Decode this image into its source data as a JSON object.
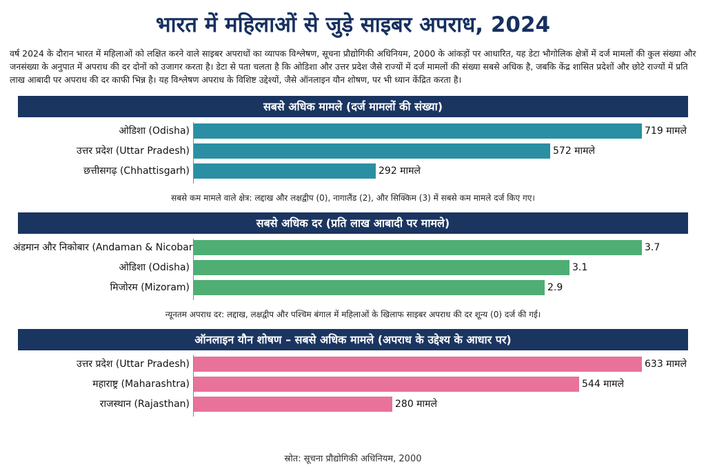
{
  "title": "भारत में महिलाओं से जुड़े साइबर अपराध, 2024",
  "intro": "वर्ष 2024 के दौरान भारत में महिलाओं को लक्षित करने वाले साइबर अपराधों का व्यापक विश्लेषण, सूचना प्रौद्योगिकी अधिनियम, 2000 के आंकड़ों पर आधारित, यह डेटा भौगोलिक क्षेत्रों में दर्ज मामलों की कुल संख्या और जनसंख्या के अनुपात में अपराध की दर दोनों को उजागर करता है। डेटा से पता चलता है कि ओडिशा और उत्तर प्रदेश जैसे राज्यों में दर्ज मामलों की संख्या सबसे अधिक है, जबकि केंद्र शासित प्रदेशों और छोटे राज्यों में प्रति लाख आबादी पर अपराध की दर काफी भिन्न है। यह विश्लेषण अपराध के विशिष्ट उद्देश्यों, जैसे ऑनलाइन यौन शोषण, पर भी ध्यान केंद्रित करता है।",
  "source": "स्रोत: सूचना प्रौद्योगिकी अधिनियम, 2000",
  "chart_data": [
    {
      "type": "bar",
      "orientation": "horizontal",
      "title": "सबसे अधिक मामले (दर्ज मामलों की संख्या)",
      "color": "#2a8fa3",
      "categories": [
        "ओडिशा (Odisha)",
        "उत्तर प्रदेश (Uttar Pradesh)",
        "छत्तीसगढ़ (Chhattisgarh)"
      ],
      "values": [
        719,
        572,
        292
      ],
      "value_labels": [
        "719 मामले",
        "572 मामले",
        "292 मामले"
      ],
      "note": "सबसे कम मामले वाले क्षेत्र: लद्दाख और लक्षद्वीप (0), नागालैंड (2), और सिक्किम (3) में सबसे कम मामले दर्ज किए गए।"
    },
    {
      "type": "bar",
      "orientation": "horizontal",
      "title": "सबसे अधिक दर (प्रति लाख आबादी पर मामले)",
      "color": "#4fae74",
      "categories": [
        "अंडमान और निकोबार (Andaman & Nicobar)",
        "ओडिशा (Odisha)",
        "मिजोरम (Mizoram)"
      ],
      "values": [
        3.7,
        3.1,
        2.9
      ],
      "value_labels": [
        "3.7",
        "3.1",
        "2.9"
      ],
      "note": "न्यूनतम अपराध दर: लद्दाख, लक्षद्वीप और पश्चिम बंगाल में महिलाओं के खिलाफ साइबर अपराध की दर शून्य (0) दर्ज की गई।"
    },
    {
      "type": "bar",
      "orientation": "horizontal",
      "title": "ऑनलाइन यौन शोषण – सबसे अधिक मामले (अपराध के उद्देश्य के आधार पर)",
      "color": "#e8729a",
      "categories": [
        "उत्तर प्रदेश (Uttar Pradesh)",
        "महाराष्ट्र (Maharashtra)",
        "राजस्थान (Rajasthan)"
      ],
      "values": [
        633,
        544,
        280
      ],
      "value_labels": [
        "633 मामले",
        "544 मामले",
        "280 मामले"
      ],
      "note": ""
    }
  ]
}
